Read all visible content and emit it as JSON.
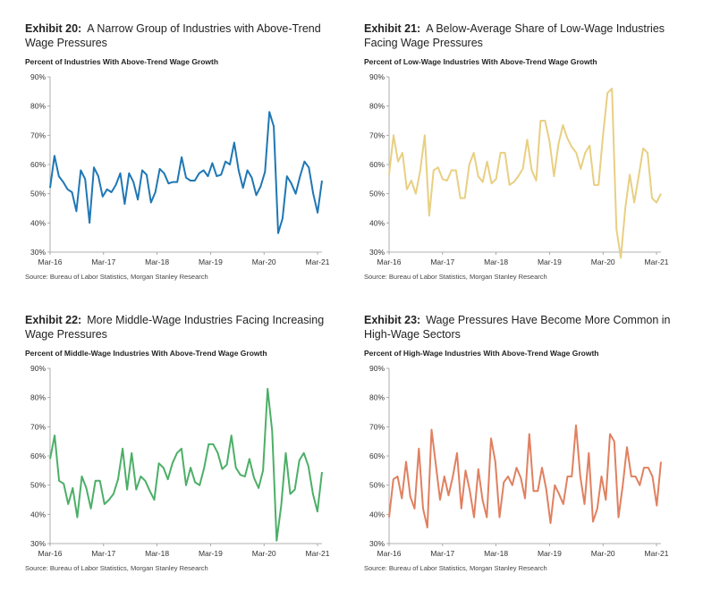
{
  "source_text": "Source: Bureau of Labor Statistics, Morgan Stanley Research",
  "chart_data": [
    {
      "type": "line",
      "exhibit": "Exhibit 20:",
      "title": "A Narrow Group of Industries with Above-Trend Wage Pressures",
      "subtitle": "Percent of Industries With Above-Trend Wage Growth",
      "color": "#1f77b4",
      "x_ticks": [
        "Mar-16",
        "Mar-17",
        "Mar-18",
        "Mar-19",
        "Mar-20",
        "Mar-21"
      ],
      "y_ticks": [
        "30%",
        "40%",
        "50%",
        "60%",
        "70%",
        "80%",
        "90%"
      ],
      "ylim": [
        30,
        90
      ],
      "x_start": "2016-03",
      "values": [
        52,
        63,
        56,
        54,
        51.5,
        50.5,
        44,
        58,
        55,
        40,
        59,
        56,
        49,
        51.5,
        50.5,
        53,
        57,
        46.5,
        57,
        54,
        48,
        58,
        56.5,
        47,
        50.5,
        58.5,
        57,
        53.5,
        54,
        54,
        62.5,
        55.5,
        54.5,
        54.5,
        57,
        58,
        56,
        60.5,
        56,
        56.5,
        61,
        60,
        67.5,
        58,
        52,
        58,
        55.5,
        49.5,
        52.5,
        57.5,
        78,
        73,
        36.5,
        41.5,
        56,
        53.5,
        50,
        56,
        61,
        59,
        50,
        43.5,
        54.5
      ]
    },
    {
      "type": "line",
      "exhibit": "Exhibit 21:",
      "title": "A Below-Average Share of Low-Wage Industries Facing Wage Pressures",
      "subtitle": "Percent of Low-Wage Industries With Above-Trend Wage Growth",
      "color": "#e8cf82",
      "x_ticks": [
        "Mar-16",
        "Mar-17",
        "Mar-18",
        "Mar-19",
        "Mar-20",
        "Mar-21"
      ],
      "y_ticks": [
        "30%",
        "40%",
        "50%",
        "60%",
        "70%",
        "80%",
        "90%"
      ],
      "ylim": [
        30,
        90
      ],
      "x_start": "2016-03",
      "values": [
        56.5,
        70,
        61,
        64,
        51.5,
        54.5,
        50,
        58,
        70,
        42.5,
        58,
        59,
        55,
        54.5,
        58,
        58,
        48.5,
        48.5,
        60,
        64,
        56,
        54,
        61,
        53.5,
        55,
        64,
        64,
        53,
        54,
        56,
        58.5,
        68.5,
        58,
        54.5,
        75,
        75,
        68,
        56,
        67,
        73.5,
        69,
        66,
        64,
        58.5,
        64,
        66.5,
        53,
        53,
        70,
        84.5,
        86,
        38,
        28,
        45,
        56.5,
        47,
        56,
        65.5,
        64,
        48.5,
        47,
        50
      ]
    },
    {
      "type": "line",
      "exhibit": "Exhibit 22:",
      "title": "More Middle-Wage Industries Facing Increasing Wage Pressures",
      "subtitle": "Percent of Middle-Wage Industries With Above-Trend Wage Growth",
      "color": "#4caf67",
      "x_ticks": [
        "Mar-16",
        "Mar-17",
        "Mar-18",
        "Mar-19",
        "Mar-20",
        "Mar-21"
      ],
      "y_ticks": [
        "30%",
        "40%",
        "50%",
        "60%",
        "70%",
        "80%",
        "90%"
      ],
      "ylim": [
        30,
        90
      ],
      "x_start": "2016-03",
      "values": [
        59,
        67,
        51.5,
        50.5,
        43.5,
        49,
        39,
        53,
        49,
        42,
        51.5,
        51.5,
        43.5,
        45,
        47,
        52,
        62.5,
        48.5,
        61,
        48.5,
        53,
        51.5,
        48,
        45,
        57.5,
        56,
        52,
        57.5,
        61,
        62.5,
        50,
        56,
        51,
        50,
        56,
        64,
        64,
        61,
        55.5,
        57,
        67,
        56,
        53.5,
        53,
        59,
        52.5,
        49,
        55,
        83,
        68.5,
        31,
        43,
        61,
        47,
        48.5,
        58.5,
        61,
        56.5,
        47,
        41,
        54.5
      ]
    },
    {
      "type": "line",
      "exhibit": "Exhibit 23:",
      "title": "Wage Pressures Have Become More Common in High-Wage Sectors",
      "subtitle": "Percent of High-Wage Industries With Above-Trend Wage Growth",
      "color": "#e08060",
      "x_ticks": [
        "Mar-16",
        "Mar-17",
        "Mar-18",
        "Mar-19",
        "Mar-20",
        "Mar-21"
      ],
      "y_ticks": [
        "30%",
        "40%",
        "50%",
        "60%",
        "70%",
        "80%",
        "90%"
      ],
      "ylim": [
        30,
        90
      ],
      "x_start": "2016-03",
      "values": [
        39,
        52,
        53,
        45.5,
        58,
        46,
        42,
        62.5,
        42,
        35.5,
        69,
        57,
        45,
        53,
        46.5,
        53,
        61,
        42,
        55,
        48,
        39,
        55.5,
        45,
        39,
        66,
        58,
        39,
        51,
        53,
        50,
        56,
        52.5,
        45.5,
        67.5,
        48,
        48,
        56,
        48.5,
        37,
        50,
        47,
        43.5,
        53,
        53,
        70.5,
        53,
        43.5,
        61,
        37.5,
        42,
        53,
        45,
        67.5,
        65,
        39,
        50,
        63,
        53,
        53,
        50,
        56,
        56,
        53,
        43,
        58
      ]
    }
  ]
}
